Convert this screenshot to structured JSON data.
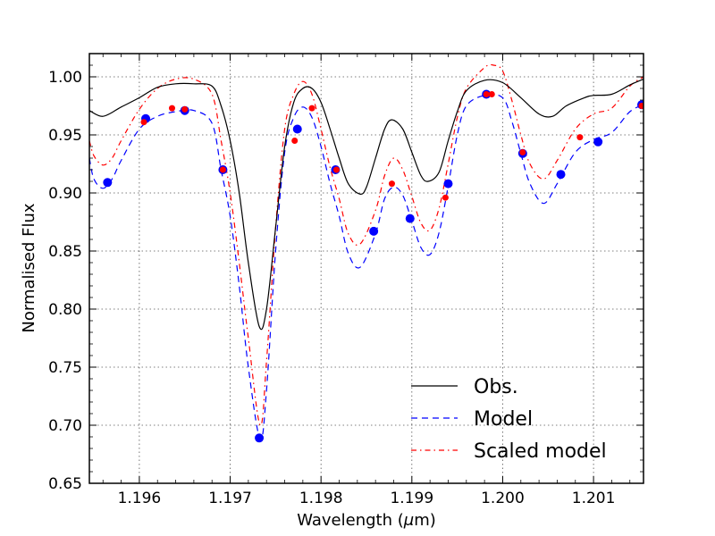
{
  "chart_data": {
    "type": "line",
    "title": "",
    "xlabel": "Wavelength (",
    "xlabel_mu": "μ",
    "xlabel_unit": "m)",
    "ylabel": "Normalised Flux",
    "xlim": [
      1.19545,
      1.20155
    ],
    "ylim": [
      0.65,
      1.02
    ],
    "grid": true,
    "legend_position": "lower-right",
    "x_ticks": [
      1.196,
      1.197,
      1.198,
      1.199,
      1.2,
      1.201
    ],
    "x_tick_labels": [
      "1.196",
      "1.197",
      "1.198",
      "1.199",
      "1.200",
      "1.201"
    ],
    "y_ticks": [
      0.65,
      0.7,
      0.75,
      0.8,
      0.85,
      0.9,
      0.95,
      1.0
    ],
    "y_tick_labels": [
      "0.65",
      "0.70",
      "0.75",
      "0.80",
      "0.85",
      "0.90",
      "0.95",
      "1.00"
    ],
    "series": [
      {
        "name": "Obs.",
        "color": "#000000",
        "style": "solid",
        "points": [
          [
            1.19545,
            0.971
          ],
          [
            1.1956,
            0.966
          ],
          [
            1.1958,
            0.974
          ],
          [
            1.196,
            0.982
          ],
          [
            1.1962,
            0.991
          ],
          [
            1.1964,
            0.994
          ],
          [
            1.1966,
            0.994
          ],
          [
            1.1968,
            0.992
          ],
          [
            1.1969,
            0.975
          ],
          [
            1.197,
            0.945
          ],
          [
            1.1971,
            0.9
          ],
          [
            1.1972,
            0.84
          ],
          [
            1.19732,
            0.785
          ],
          [
            1.1974,
            0.8
          ],
          [
            1.1975,
            0.87
          ],
          [
            1.1976,
            0.94
          ],
          [
            1.1977,
            0.978
          ],
          [
            1.1978,
            0.99
          ],
          [
            1.1979,
            0.99
          ],
          [
            1.198,
            0.978
          ],
          [
            1.1981,
            0.955
          ],
          [
            1.1982,
            0.93
          ],
          [
            1.1983,
            0.908
          ],
          [
            1.19843,
            0.899
          ],
          [
            1.1985,
            0.905
          ],
          [
            1.1986,
            0.93
          ],
          [
            1.1987,
            0.955
          ],
          [
            1.19878,
            0.963
          ],
          [
            1.1989,
            0.955
          ],
          [
            1.199,
            0.935
          ],
          [
            1.1991,
            0.915
          ],
          [
            1.19918,
            0.91
          ],
          [
            1.1993,
            0.918
          ],
          [
            1.1994,
            0.945
          ],
          [
            1.1995,
            0.97
          ],
          [
            1.1996,
            0.988
          ],
          [
            1.1998,
            0.997
          ],
          [
            1.2,
            0.995
          ],
          [
            1.2002,
            0.982
          ],
          [
            1.2004,
            0.968
          ],
          [
            1.20055,
            0.966
          ],
          [
            1.2007,
            0.975
          ],
          [
            1.2009,
            0.982
          ],
          [
            1.201,
            0.984
          ],
          [
            1.2012,
            0.985
          ],
          [
            1.2014,
            0.993
          ],
          [
            1.20155,
            0.998
          ]
        ]
      },
      {
        "name": "Model",
        "color": "#0000ff",
        "style": "dashed",
        "points": [
          [
            1.19545,
            0.93
          ],
          [
            1.1955,
            0.912
          ],
          [
            1.1956,
            0.904
          ],
          [
            1.1957,
            0.912
          ],
          [
            1.1958,
            0.928
          ],
          [
            1.196,
            0.955
          ],
          [
            1.1962,
            0.966
          ],
          [
            1.1964,
            0.97
          ],
          [
            1.1966,
            0.971
          ],
          [
            1.1968,
            0.96
          ],
          [
            1.1969,
            0.92
          ],
          [
            1.197,
            0.88
          ],
          [
            1.1971,
            0.82
          ],
          [
            1.1972,
            0.75
          ],
          [
            1.19733,
            0.688
          ],
          [
            1.1974,
            0.73
          ],
          [
            1.1975,
            0.85
          ],
          [
            1.1976,
            0.935
          ],
          [
            1.1977,
            0.965
          ],
          [
            1.1978,
            0.974
          ],
          [
            1.1979,
            0.965
          ],
          [
            1.198,
            0.94
          ],
          [
            1.1981,
            0.908
          ],
          [
            1.1982,
            0.88
          ],
          [
            1.1983,
            0.848
          ],
          [
            1.19843,
            0.836
          ],
          [
            1.1986,
            0.865
          ],
          [
            1.1987,
            0.895
          ],
          [
            1.1988,
            0.905
          ],
          [
            1.1989,
            0.898
          ],
          [
            1.199,
            0.876
          ],
          [
            1.1991,
            0.853
          ],
          [
            1.1992,
            0.847
          ],
          [
            1.1993,
            0.866
          ],
          [
            1.1994,
            0.906
          ],
          [
            1.1995,
            0.95
          ],
          [
            1.1996,
            0.975
          ],
          [
            1.1998,
            0.984
          ],
          [
            1.2,
            0.982
          ],
          [
            1.2001,
            0.962
          ],
          [
            1.2002,
            0.934
          ],
          [
            1.2003,
            0.908
          ],
          [
            1.20045,
            0.891
          ],
          [
            1.2006,
            0.908
          ],
          [
            1.2008,
            0.935
          ],
          [
            1.201,
            0.946
          ],
          [
            1.2012,
            0.952
          ],
          [
            1.2014,
            0.97
          ],
          [
            1.20155,
            0.976
          ]
        ]
      },
      {
        "name": "Scaled model",
        "color": "#ff0000",
        "style": "dashdot",
        "points": [
          [
            1.19545,
            0.945
          ],
          [
            1.1955,
            0.932
          ],
          [
            1.1956,
            0.924
          ],
          [
            1.1957,
            0.93
          ],
          [
            1.1958,
            0.945
          ],
          [
            1.196,
            0.972
          ],
          [
            1.1962,
            0.99
          ],
          [
            1.1964,
            0.998
          ],
          [
            1.1966,
            0.998
          ],
          [
            1.1968,
            0.985
          ],
          [
            1.1969,
            0.945
          ],
          [
            1.197,
            0.9
          ],
          [
            1.1971,
            0.84
          ],
          [
            1.1972,
            0.775
          ],
          [
            1.19733,
            0.7
          ],
          [
            1.1974,
            0.755
          ],
          [
            1.1975,
            0.87
          ],
          [
            1.1976,
            0.955
          ],
          [
            1.1977,
            0.985
          ],
          [
            1.1978,
            0.996
          ],
          [
            1.1979,
            0.985
          ],
          [
            1.198,
            0.955
          ],
          [
            1.1981,
            0.922
          ],
          [
            1.1982,
            0.895
          ],
          [
            1.1983,
            0.865
          ],
          [
            1.19843,
            0.856
          ],
          [
            1.1986,
            0.885
          ],
          [
            1.1987,
            0.915
          ],
          [
            1.1988,
            0.93
          ],
          [
            1.1989,
            0.92
          ],
          [
            1.199,
            0.897
          ],
          [
            1.1991,
            0.874
          ],
          [
            1.1992,
            0.868
          ],
          [
            1.1993,
            0.887
          ],
          [
            1.1994,
            0.925
          ],
          [
            1.1995,
            0.965
          ],
          [
            1.1996,
            0.99
          ],
          [
            1.1998,
            1.008
          ],
          [
            1.1999,
            1.01
          ],
          [
            1.2,
            1.005
          ],
          [
            1.2001,
            0.98
          ],
          [
            1.2002,
            0.95
          ],
          [
            1.2003,
            0.925
          ],
          [
            1.20045,
            0.912
          ],
          [
            1.2006,
            0.928
          ],
          [
            1.2008,
            0.955
          ],
          [
            1.201,
            0.968
          ],
          [
            1.2012,
            0.973
          ],
          [
            1.2014,
            0.992
          ],
          [
            1.20155,
            1.0
          ]
        ]
      }
    ],
    "markers": {
      "model_points": {
        "color": "#0000ff",
        "points": [
          [
            1.19565,
            0.909
          ],
          [
            1.19607,
            0.964
          ],
          [
            1.1965,
            0.971
          ],
          [
            1.19692,
            0.92
          ],
          [
            1.19732,
            0.689
          ],
          [
            1.19774,
            0.955
          ],
          [
            1.19816,
            0.92
          ],
          [
            1.19858,
            0.867
          ],
          [
            1.19898,
            0.878
          ],
          [
            1.1994,
            0.908
          ],
          [
            1.19982,
            0.985
          ],
          [
            1.20022,
            0.934
          ],
          [
            1.20064,
            0.916
          ],
          [
            1.20105,
            0.944
          ],
          [
            1.20153,
            0.976
          ]
        ]
      },
      "scaled_points": {
        "color": "#ff0000",
        "points": [
          [
            1.19605,
            0.961
          ],
          [
            1.19636,
            0.973
          ],
          [
            1.1965,
            0.972
          ],
          [
            1.19692,
            0.92
          ],
          [
            1.19771,
            0.945
          ],
          [
            1.1979,
            0.973
          ],
          [
            1.19817,
            0.92
          ],
          [
            1.19878,
            0.908
          ],
          [
            1.19937,
            0.896
          ],
          [
            1.19982,
            0.985
          ],
          [
            1.19988,
            0.985
          ],
          [
            1.20022,
            0.935
          ],
          [
            1.20085,
            0.948
          ],
          [
            1.20153,
            0.975
          ]
        ]
      }
    }
  }
}
